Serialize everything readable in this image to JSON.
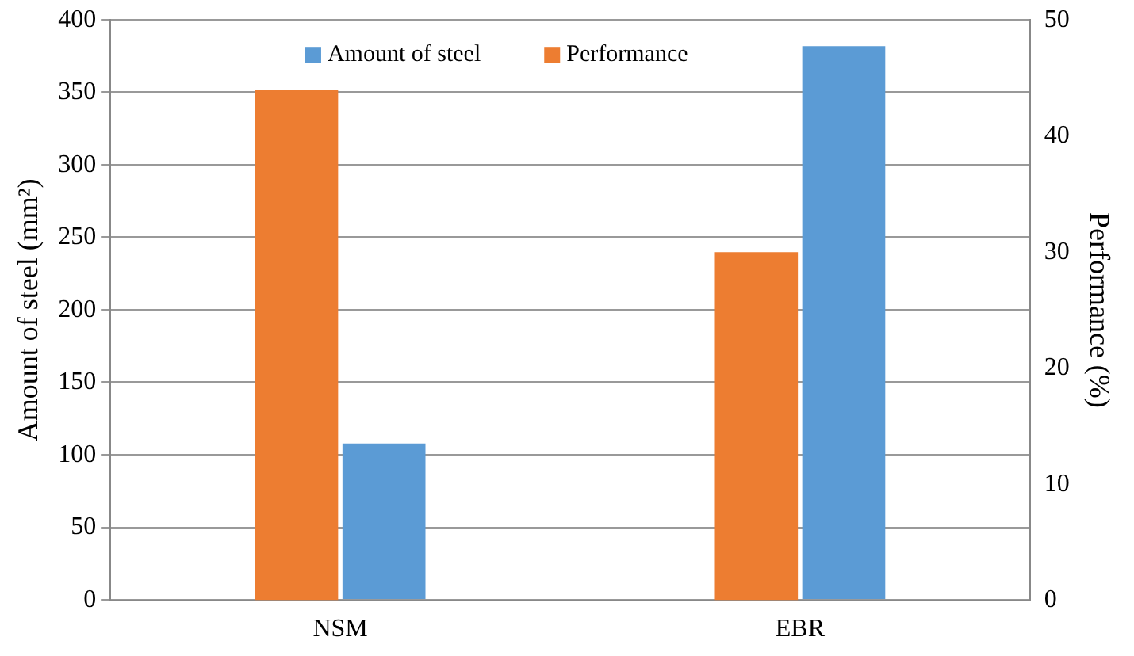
{
  "chart_data": {
    "type": "bar",
    "categories": [
      "NSM",
      "EBR"
    ],
    "series": [
      {
        "name": "Performance",
        "color": "#ed7d31",
        "values": [
          44,
          30
        ],
        "axis": "y2"
      },
      {
        "name": "Amount of steel",
        "color": "#5b9bd5",
        "values": [
          108,
          382
        ]
      }
    ],
    "ylabel": "Amount of steel (mm²)",
    "y2label": "Performance (%)",
    "ylim": [
      0,
      400
    ],
    "yticks": [
      0,
      50,
      100,
      150,
      200,
      250,
      300,
      350,
      400
    ],
    "y2lim": [
      0,
      50
    ],
    "y2ticks": [
      0,
      10,
      20,
      30,
      40,
      50
    ],
    "grid": "y",
    "legend": "top"
  }
}
